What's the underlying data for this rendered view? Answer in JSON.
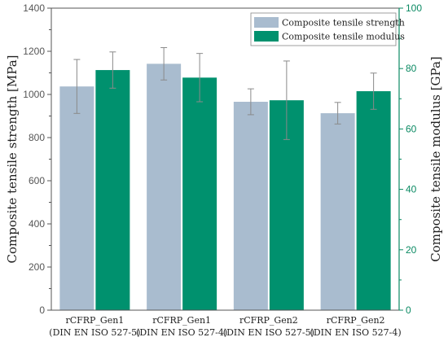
{
  "chart_data": {
    "type": "bar",
    "categories": [
      [
        "rCFRP_Gen1",
        "(DIN EN ISO 527-5)"
      ],
      [
        "rCFRP_Gen1",
        "(DIN EN ISO 527-4)"
      ],
      [
        "rCFRP_Gen2",
        "(DIN EN ISO 527-5)"
      ],
      [
        "rCFRP_Gen2",
        "(DIN EN ISO 527-4)"
      ]
    ],
    "series": [
      {
        "name": "Composite tensile strength",
        "axis": "left",
        "color": "#a9bccf",
        "values": [
          1037,
          1142,
          966,
          913
        ],
        "errors": [
          125,
          75,
          60,
          50
        ]
      },
      {
        "name": "Composite tensile modulus",
        "axis": "right",
        "color": "#00916e",
        "values": [
          79.5,
          77.0,
          69.5,
          72.5
        ],
        "errors": [
          6.0,
          8.0,
          13.0,
          6.0
        ]
      }
    ],
    "ylabel": "Composite tensile strength [MPa]",
    "ylabel_right": "Composite tensile modulus [GPa]",
    "ylim": [
      0,
      1400
    ],
    "ylim_right": [
      0,
      100
    ],
    "yticks": [
      0,
      200,
      400,
      600,
      800,
      1000,
      1200,
      1400
    ],
    "yticks_right": [
      0,
      20,
      40,
      60,
      80,
      100
    ],
    "legend_position": "top-right",
    "grid": false
  }
}
